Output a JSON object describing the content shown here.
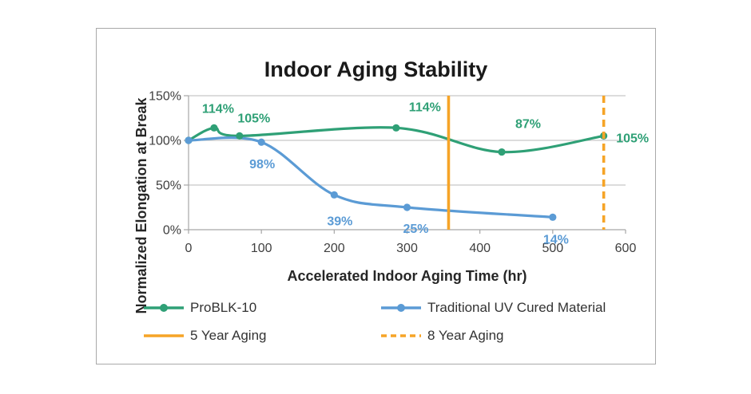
{
  "chart": {
    "title": "Indoor Aging Stability",
    "x_axis": {
      "label": "Accelerated Indoor Aging Time (hr)"
    },
    "y_axis": {
      "label": "Normalized Elongation at Break"
    }
  },
  "chart_data": {
    "type": "line",
    "title": "Indoor Aging Stability",
    "xlabel": "Accelerated Indoor Aging Time (hr)",
    "ylabel": "Normalized Elongation at Break",
    "xlim": [
      0,
      600
    ],
    "ylim": [
      0,
      150
    ],
    "y_unit": "%",
    "x_ticks": [
      0,
      100,
      200,
      300,
      400,
      500,
      600
    ],
    "y_ticks": [
      0,
      50,
      100,
      150
    ],
    "y_tick_labels": [
      "0%",
      "50%",
      "100%",
      "150%"
    ],
    "grid": "horizontal",
    "legend_position": "bottom",
    "smooth_lines": true,
    "series": [
      {
        "name": "ProBLK-10",
        "color": "#2FA076",
        "marker": "circle",
        "x": [
          0,
          35,
          70,
          285,
          430,
          570
        ],
        "y": [
          100,
          114,
          105,
          114,
          87,
          105
        ],
        "point_labels": [
          "",
          "114%",
          "105%",
          "114%",
          "87%",
          "105%"
        ]
      },
      {
        "name": "Traditional UV Cured Material",
        "color": "#5B9BD5",
        "marker": "circle",
        "x": [
          0,
          100,
          200,
          300,
          500
        ],
        "y": [
          100,
          98,
          39,
          25,
          14
        ],
        "point_labels": [
          "",
          "98%",
          "39%",
          "25%",
          "14%"
        ]
      }
    ],
    "annotations": [
      {
        "label": "5 Year Aging",
        "type": "vline",
        "x": 357,
        "line_style": "solid",
        "color": "#F6A427"
      },
      {
        "label": "8 Year Aging",
        "type": "vline",
        "x": 570,
        "line_style": "dashed",
        "color": "#F6A427"
      }
    ]
  },
  "legend": {
    "items": [
      {
        "label": "ProBLK-10",
        "swatch": "line-marker",
        "color": "#2FA076",
        "dashed": false
      },
      {
        "label": "Traditional UV Cured Material",
        "swatch": "line-marker",
        "color": "#5B9BD5",
        "dashed": false
      },
      {
        "label": "5 Year Aging",
        "swatch": "line",
        "color": "#F6A427",
        "dashed": false
      },
      {
        "label": "8 Year Aging",
        "swatch": "line",
        "color": "#F6A427",
        "dashed": true
      }
    ]
  },
  "colors": {
    "green_series": "#2FA076",
    "blue_series": "#5B9BD5",
    "orange_annotation": "#F6A427",
    "gridline": "#C8C8C8",
    "axis_line": "#A6A6A6",
    "tick_text": "#3F3F3F",
    "title_text": "#1A1A1A",
    "legend_text": "#333333",
    "figure_border": "#A9A9A9"
  }
}
